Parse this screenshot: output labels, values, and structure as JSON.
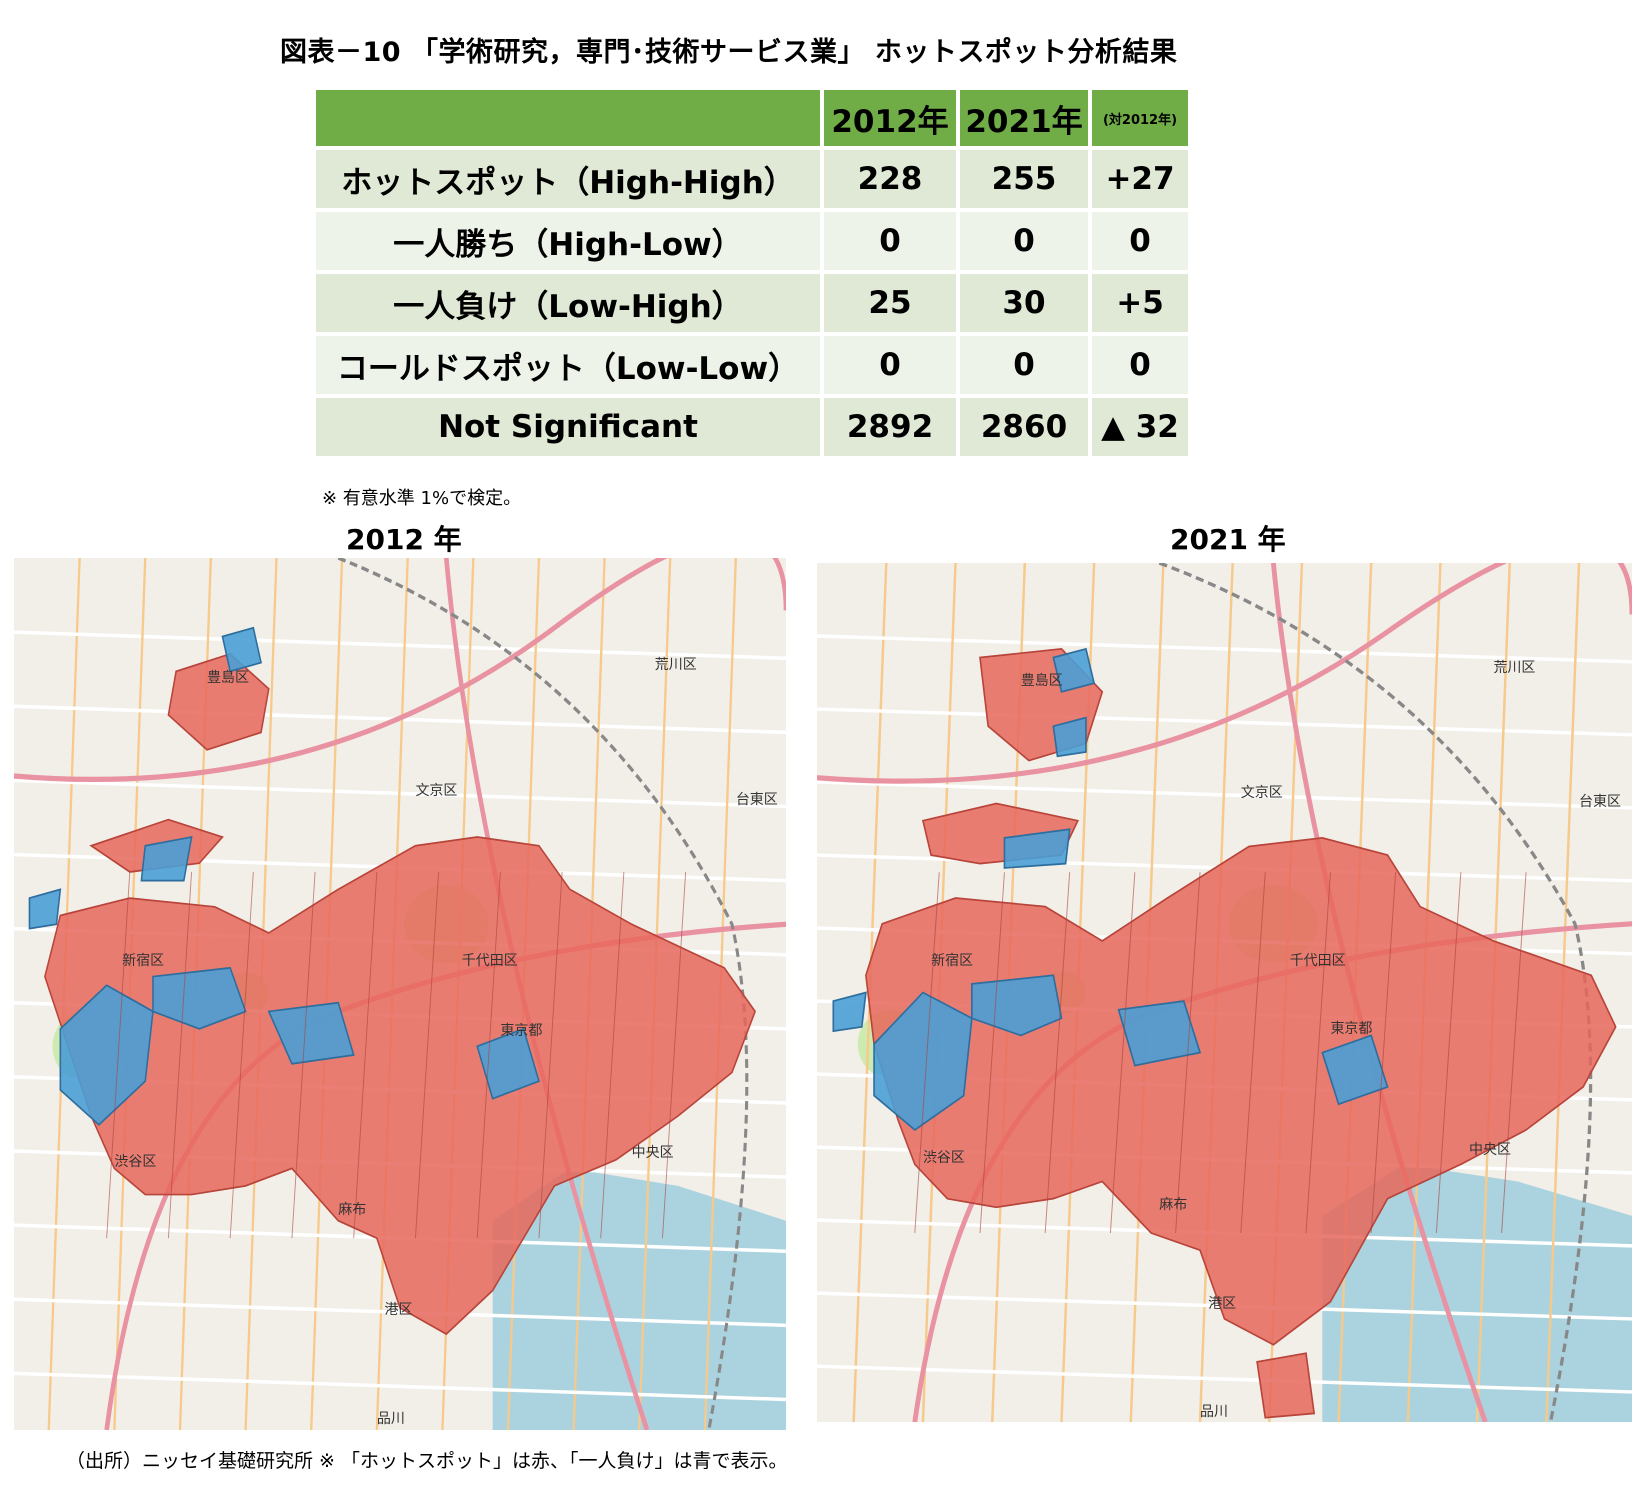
{
  "title": "図表－10 「学術研究，専門･技術サービス業」 ホットスポット分析結果",
  "table": {
    "headers": [
      "",
      "2012年",
      "2021年",
      "(対2012年)"
    ],
    "rows": [
      {
        "label": "ホットスポット（High-High）",
        "v2012": "228",
        "v2021": "255",
        "diff": "+27"
      },
      {
        "label": "一人勝ち（High-Low）",
        "v2012": "0",
        "v2021": "0",
        "diff": "0"
      },
      {
        "label": "一人負け（Low-High）",
        "v2012": "25",
        "v2021": "30",
        "diff": "+5"
      },
      {
        "label": "コールドスポット（Low-Low）",
        "v2012": "0",
        "v2021": "0",
        "diff": "0"
      },
      {
        "label": "Not Significant",
        "v2012": "2892",
        "v2021": "2860",
        "diff": "▲ 32"
      }
    ]
  },
  "note": "※ 有意水準 1%で検定。",
  "maps": [
    {
      "year_label": "2012 年",
      "area_labels": [
        "豊島区",
        "文京区",
        "台東区",
        "荒川区",
        "新宿区",
        "千代田区",
        "東京都",
        "渋谷区",
        "中央区",
        "港区",
        "麻布",
        "品川"
      ]
    },
    {
      "year_label": "2021 年",
      "area_labels": [
        "豊島区",
        "文京区",
        "台東区",
        "荒川区",
        "新宿区",
        "千代田区",
        "東京都",
        "渋谷区",
        "中央区",
        "港区",
        "麻布",
        "品川"
      ]
    }
  ],
  "legend_colors": {
    "hotspot": "#e8675c",
    "low_high": "#4a9fd6",
    "not_significant": "#f2efe9"
  },
  "footer": "（出所）ニッセイ基礎研究所 ※ 「ホットスポット」は赤、「一人負け」は青で表示。"
}
